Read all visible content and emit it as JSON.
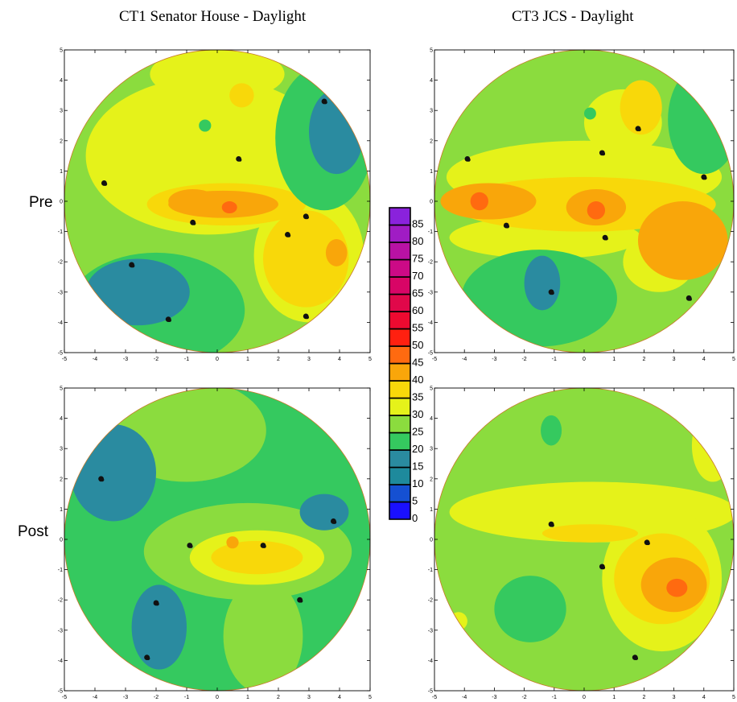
{
  "titles": [
    "CT1 Senator House -  Daylight",
    "CT3 JCS - Daylight"
  ],
  "row_labels": [
    "Pre",
    "Post"
  ],
  "colors": {
    "0": "#1a10ff",
    "5": "#1550d2",
    "10": "#1e8a9c",
    "15": "#2a8ba0",
    "20": "#35c95f",
    "25": "#8bdc3e",
    "30": "#e5f21a",
    "35": "#f8d80a",
    "40": "#f9a60a",
    "45": "#ff6a10",
    "50": "#ff2010",
    "55": "#ee0a30",
    "60": "#e0084a",
    "65": "#d80566",
    "70": "#cc0a86",
    "75": "#b812a4",
    "80": "#a01cc4",
    "85": "#8a22dc"
  },
  "chart_data": [
    {
      "type": "heatmap",
      "title": "CT1 Senator House -  Daylight",
      "row": "Pre",
      "xlim": [
        -5,
        5
      ],
      "ylim": [
        -5,
        5
      ],
      "xticks": [
        -5,
        -4,
        -3,
        -2,
        -1,
        0,
        1,
        2,
        3,
        4,
        5
      ],
      "yticks": [
        -5,
        -4,
        -3,
        -2,
        -1,
        0,
        1,
        2,
        3,
        4,
        5
      ],
      "background_level": 25,
      "regions": [
        {
          "level": 30,
          "cx": -0.3,
          "cy": 1.5,
          "rx": 4.0,
          "ry": 2.6
        },
        {
          "level": 30,
          "cx": 3.0,
          "cy": -1.8,
          "rx": 1.8,
          "ry": 2.2
        },
        {
          "level": 30,
          "cx": 0.0,
          "cy": 4.2,
          "rx": 2.2,
          "ry": 0.9
        },
        {
          "level": 35,
          "cx": 2.9,
          "cy": -1.9,
          "rx": 1.4,
          "ry": 1.6
        },
        {
          "level": 35,
          "cx": 0.3,
          "cy": -0.1,
          "rx": 2.6,
          "ry": 0.7
        },
        {
          "level": 35,
          "cx": 0.8,
          "cy": 3.5,
          "rx": 0.4,
          "ry": 0.4
        },
        {
          "level": 40,
          "cx": 3.9,
          "cy": -1.7,
          "rx": 0.35,
          "ry": 0.45
        },
        {
          "level": 40,
          "cx": 0.2,
          "cy": -0.1,
          "rx": 1.8,
          "ry": 0.45
        },
        {
          "level": 40,
          "cx": -0.8,
          "cy": 0.0,
          "rx": 0.8,
          "ry": 0.4
        },
        {
          "level": 45,
          "cx": 0.4,
          "cy": -0.2,
          "rx": 0.25,
          "ry": 0.2
        },
        {
          "level": 20,
          "cx": 3.5,
          "cy": 2.1,
          "rx": 1.6,
          "ry": 2.4
        },
        {
          "level": 15,
          "cx": 3.9,
          "cy": 2.3,
          "rx": 0.9,
          "ry": 1.4
        },
        {
          "level": 20,
          "cx": -2.0,
          "cy": -3.6,
          "rx": 2.9,
          "ry": 1.9
        },
        {
          "level": 15,
          "cx": -2.6,
          "cy": -3.0,
          "rx": 1.7,
          "ry": 1.1
        },
        {
          "level": 20,
          "cx": -0.4,
          "cy": 2.5,
          "rx": 0.2,
          "ry": 0.2
        },
        {
          "level": 30,
          "cx": -2.0,
          "cy": 2.9,
          "rx": 0.3,
          "ry": 0.3
        }
      ],
      "markers": [
        [
          -3.7,
          0.6
        ],
        [
          -2.8,
          -2.1
        ],
        [
          -1.6,
          -3.9
        ],
        [
          -0.8,
          -0.7
        ],
        [
          0.7,
          1.4
        ],
        [
          2.3,
          -1.1
        ],
        [
          2.9,
          -0.5
        ],
        [
          2.9,
          -3.8
        ],
        [
          3.5,
          3.3
        ]
      ]
    },
    {
      "type": "heatmap",
      "title": "CT3 JCS - Daylight",
      "row": "Pre",
      "xlim": [
        -5,
        5
      ],
      "ylim": [
        -5,
        5
      ],
      "xticks": [
        -5,
        -4,
        -3,
        -2,
        -1,
        0,
        1,
        2,
        3,
        4,
        5
      ],
      "yticks": [
        -5,
        -4,
        -3,
        -2,
        -1,
        0,
        1,
        2,
        3,
        4,
        5
      ],
      "background_level": 25,
      "regions": [
        {
          "level": 30,
          "cx": 0.0,
          "cy": 0.8,
          "rx": 4.6,
          "ry": 1.2
        },
        {
          "level": 30,
          "cx": -1.3,
          "cy": -1.2,
          "rx": 3.2,
          "ry": 0.7
        },
        {
          "level": 30,
          "cx": 1.3,
          "cy": 2.6,
          "rx": 1.3,
          "ry": 1.1
        },
        {
          "level": 30,
          "cx": 2.5,
          "cy": -2.0,
          "rx": 1.2,
          "ry": 1.0
        },
        {
          "level": 35,
          "cx": 0.0,
          "cy": -0.1,
          "rx": 4.4,
          "ry": 0.9
        },
        {
          "level": 35,
          "cx": 1.9,
          "cy": 3.1,
          "rx": 0.7,
          "ry": 0.9
        },
        {
          "level": 40,
          "cx": -3.2,
          "cy": 0.0,
          "rx": 1.6,
          "ry": 0.6
        },
        {
          "level": 40,
          "cx": 3.3,
          "cy": -1.3,
          "rx": 1.5,
          "ry": 1.3
        },
        {
          "level": 40,
          "cx": 0.4,
          "cy": -0.2,
          "rx": 1.0,
          "ry": 0.6
        },
        {
          "level": 45,
          "cx": 0.4,
          "cy": -0.3,
          "rx": 0.3,
          "ry": 0.3
        },
        {
          "level": 45,
          "cx": -3.5,
          "cy": 0.0,
          "rx": 0.3,
          "ry": 0.3
        },
        {
          "level": 20,
          "cx": -1.5,
          "cy": -3.2,
          "rx": 2.6,
          "ry": 1.6
        },
        {
          "level": 15,
          "cx": -1.4,
          "cy": -2.7,
          "rx": 0.6,
          "ry": 0.9
        },
        {
          "level": 20,
          "cx": 4.0,
          "cy": 2.7,
          "rx": 1.2,
          "ry": 1.8
        },
        {
          "level": 20,
          "cx": 0.2,
          "cy": 2.9,
          "rx": 0.2,
          "ry": 0.2
        }
      ],
      "markers": [
        [
          -3.9,
          1.4
        ],
        [
          -2.6,
          -0.8
        ],
        [
          -1.1,
          -3.0
        ],
        [
          0.6,
          1.6
        ],
        [
          0.7,
          -1.2
        ],
        [
          1.8,
          2.4
        ],
        [
          3.5,
          -3.2
        ],
        [
          4.0,
          0.8
        ]
      ]
    },
    {
      "type": "heatmap",
      "title": "CT1 Senator House -  Daylight",
      "row": "Post",
      "xlim": [
        -5,
        5
      ],
      "ylim": [
        -5,
        5
      ],
      "xticks": [
        -5,
        -4,
        -3,
        -2,
        -1,
        0,
        1,
        2,
        3,
        4,
        5
      ],
      "yticks": [
        -5,
        -4,
        -3,
        -2,
        -1,
        0,
        1,
        2,
        3,
        4,
        5
      ],
      "background_level": 20,
      "regions": [
        {
          "level": 25,
          "cx": -1.0,
          "cy": 3.6,
          "rx": 2.6,
          "ry": 1.7
        },
        {
          "level": 25,
          "cx": 1.0,
          "cy": -0.4,
          "rx": 3.4,
          "ry": 1.6
        },
        {
          "level": 25,
          "cx": 1.5,
          "cy": -3.2,
          "rx": 1.3,
          "ry": 1.9
        },
        {
          "level": 30,
          "cx": 1.3,
          "cy": -0.6,
          "rx": 2.2,
          "ry": 0.9
        },
        {
          "level": 35,
          "cx": 1.3,
          "cy": -0.6,
          "rx": 1.5,
          "ry": 0.55
        },
        {
          "level": 40,
          "cx": 0.5,
          "cy": -0.1,
          "rx": 0.2,
          "ry": 0.2
        },
        {
          "level": 15,
          "cx": -3.4,
          "cy": 2.2,
          "rx": 1.4,
          "ry": 1.6
        },
        {
          "level": 15,
          "cx": 3.5,
          "cy": 0.9,
          "rx": 0.8,
          "ry": 0.6
        },
        {
          "level": 15,
          "cx": -1.9,
          "cy": -2.9,
          "rx": 0.9,
          "ry": 1.4
        }
      ],
      "markers": [
        [
          -3.8,
          2.0
        ],
        [
          -2.0,
          -2.1
        ],
        [
          -2.3,
          -3.9
        ],
        [
          -0.9,
          -0.2
        ],
        [
          1.5,
          -0.2
        ],
        [
          2.7,
          -2.0
        ],
        [
          3.8,
          0.6
        ]
      ]
    },
    {
      "type": "heatmap",
      "title": "CT3 JCS - Daylight",
      "row": "Post",
      "xlim": [
        -5,
        5
      ],
      "ylim": [
        -5,
        5
      ],
      "xticks": [
        -5,
        -4,
        -3,
        -2,
        -1,
        0,
        1,
        2,
        3,
        4,
        5
      ],
      "yticks": [
        -5,
        -4,
        -3,
        -2,
        -1,
        0,
        1,
        2,
        3,
        4,
        5
      ],
      "background_level": 25,
      "regions": [
        {
          "level": 30,
          "cx": 0.3,
          "cy": 0.9,
          "rx": 4.8,
          "ry": 1.0
        },
        {
          "level": 30,
          "cx": 2.6,
          "cy": -1.3,
          "rx": 2.0,
          "ry": 2.4
        },
        {
          "level": 30,
          "cx": 4.3,
          "cy": 3.1,
          "rx": 0.7,
          "ry": 1.2
        },
        {
          "level": 30,
          "cx": -4.2,
          "cy": -2.7,
          "rx": 0.3,
          "ry": 0.3
        },
        {
          "level": 35,
          "cx": 2.6,
          "cy": -1.3,
          "rx": 1.6,
          "ry": 1.5
        },
        {
          "level": 35,
          "cx": 0.2,
          "cy": 0.2,
          "rx": 1.6,
          "ry": 0.3
        },
        {
          "level": 40,
          "cx": 3.0,
          "cy": -1.5,
          "rx": 1.1,
          "ry": 0.9
        },
        {
          "level": 45,
          "cx": 3.1,
          "cy": -1.6,
          "rx": 0.35,
          "ry": 0.3
        },
        {
          "level": 20,
          "cx": -1.8,
          "cy": -2.3,
          "rx": 1.2,
          "ry": 1.1
        },
        {
          "level": 20,
          "cx": -1.1,
          "cy": 3.6,
          "rx": 0.35,
          "ry": 0.5
        }
      ],
      "markers": [
        [
          -1.1,
          0.5
        ],
        [
          0.6,
          -0.9
        ],
        [
          2.1,
          -0.1
        ],
        [
          1.7,
          -3.9
        ]
      ]
    }
  ],
  "colorbar": {
    "levels": [
      0,
      5,
      10,
      15,
      20,
      25,
      30,
      35,
      40,
      45,
      50,
      55,
      60,
      65,
      70,
      75,
      80,
      85
    ],
    "labels": [
      "0",
      "5",
      "10",
      "15",
      "20",
      "25",
      "30",
      "35",
      "40",
      "45",
      "50",
      "55",
      "60",
      "65",
      "70",
      "75",
      "80",
      "85"
    ]
  }
}
